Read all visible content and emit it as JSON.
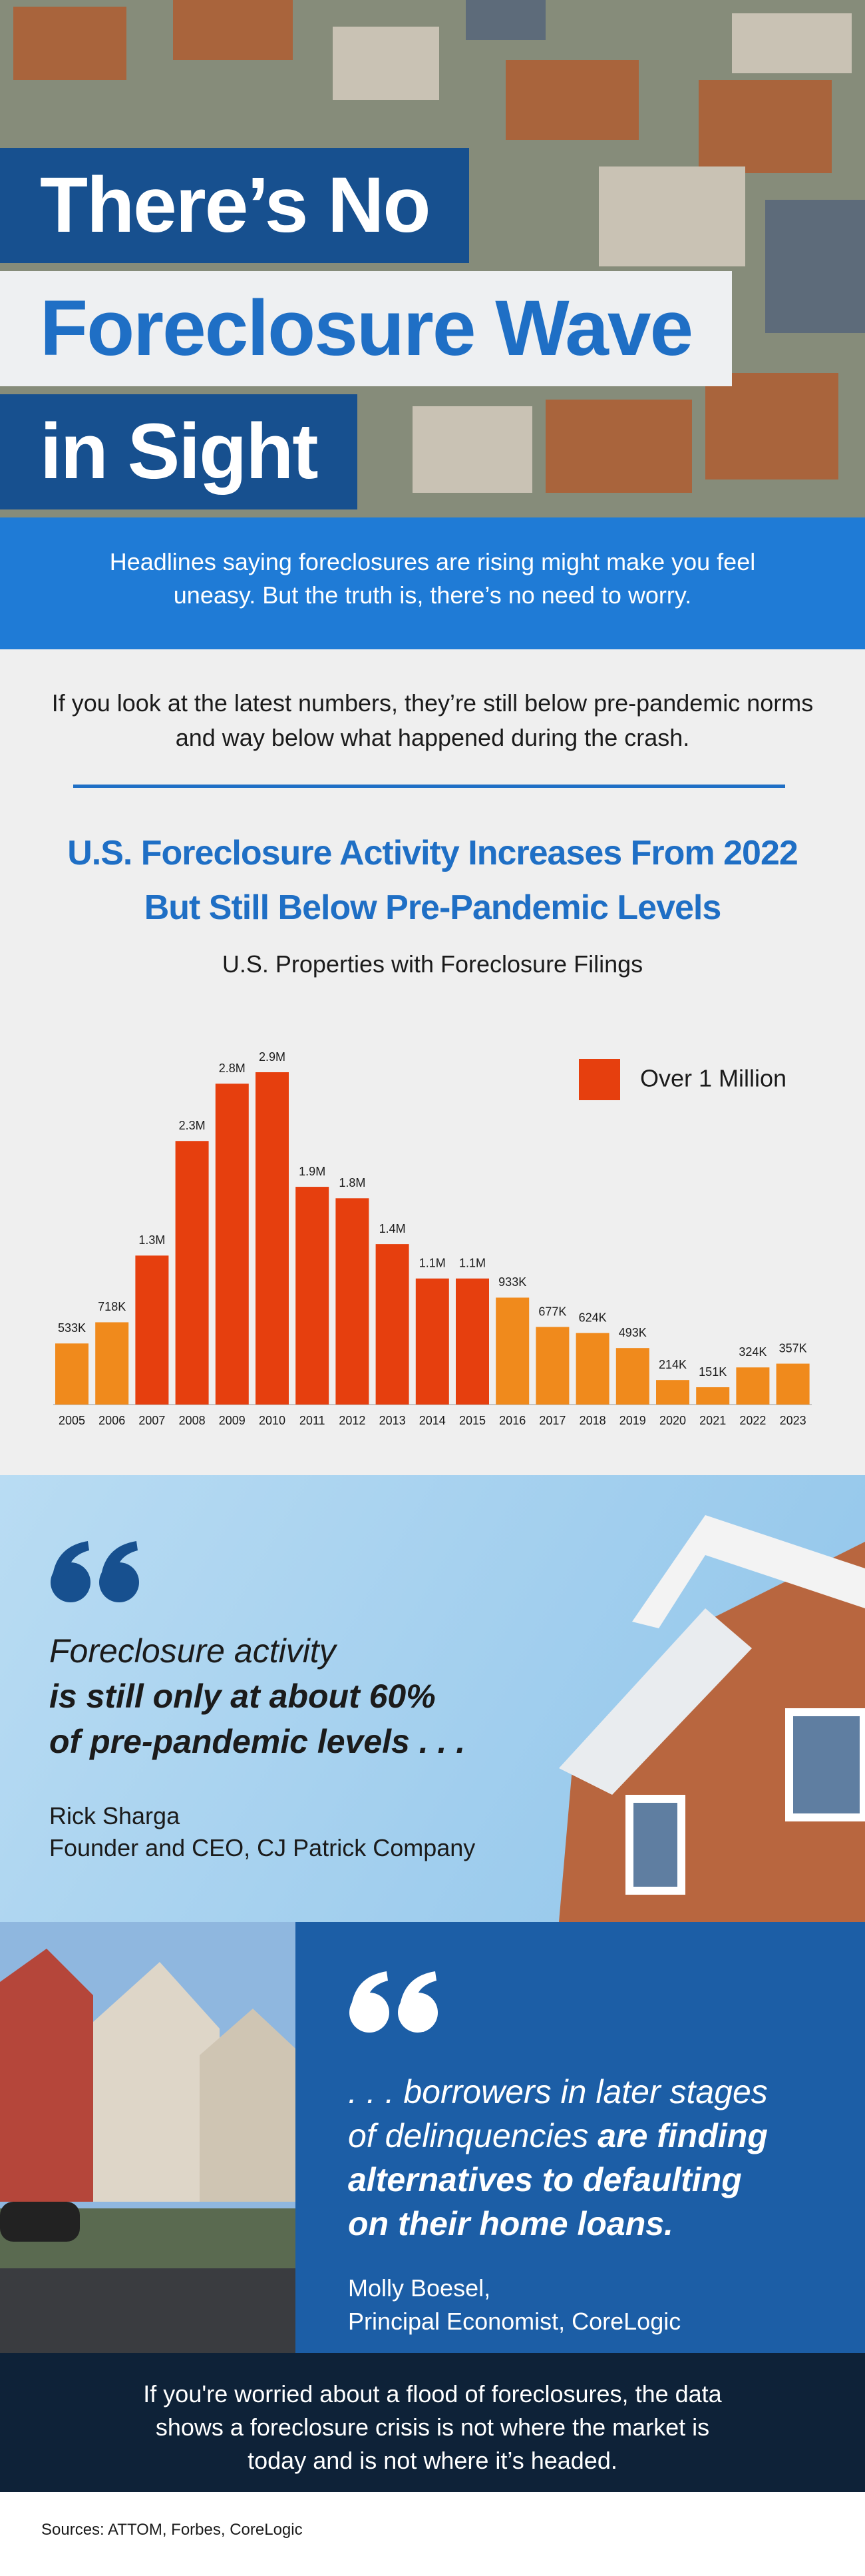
{
  "header": {
    "title_lines": [
      "There’s No",
      "Foreclosure Wave",
      "in Sight"
    ],
    "intro": "Headlines saying foreclosures are rising might make you feel uneasy. But the truth is, there’s no need to worry."
  },
  "lead": "If you look at the latest numbers, they’re still below pre-pandemic norms and way below what happened during the crash.",
  "chart_data": {
    "type": "bar",
    "title": "U.S. Foreclosure Activity Increases From 2022 But Still Below Pre-Pandemic Levels",
    "subtitle": "U.S. Properties with Foreclosure Filings",
    "categories": [
      "2005",
      "2006",
      "2007",
      "2008",
      "2009",
      "2010",
      "2011",
      "2012",
      "2013",
      "2014",
      "2015",
      "2016",
      "2017",
      "2018",
      "2019",
      "2020",
      "2021",
      "2022",
      "2023"
    ],
    "values": [
      533000,
      718000,
      1300000,
      2300000,
      2800000,
      2900000,
      1900000,
      1800000,
      1400000,
      1100000,
      1100000,
      933000,
      677000,
      624000,
      493000,
      214000,
      151000,
      324000,
      357000
    ],
    "value_labels": [
      "533K",
      "718K",
      "1.3M",
      "2.3M",
      "2.8M",
      "2.9M",
      "1.9M",
      "1.8M",
      "1.4M",
      "1.1M",
      "1.1M",
      "933K",
      "677K",
      "624K",
      "493K",
      "214K",
      "151K",
      "324K",
      "357K"
    ],
    "colors": [
      "#f08a1c",
      "#f08a1c",
      "#e63f0e",
      "#e63f0e",
      "#e63f0e",
      "#e63f0e",
      "#e63f0e",
      "#e63f0e",
      "#e63f0e",
      "#e63f0e",
      "#e63f0e",
      "#f08a1c",
      "#f08a1c",
      "#f08a1c",
      "#f08a1c",
      "#f08a1c",
      "#f08a1c",
      "#f08a1c",
      "#f08a1c"
    ],
    "legend": {
      "label": "Over 1 Million",
      "color": "#e63f0e"
    }
  },
  "quote1": {
    "lines": [
      "Foreclosure activity",
      "is still only at about 60%",
      "of pre-pandemic levels . . ."
    ],
    "name": "Rick Sharga",
    "role": "Founder and CEO, CJ Patrick Company"
  },
  "quote2": {
    "segments": [
      ". . . borrowers in later stages",
      "of delinquencies",
      "are finding",
      "alternatives to defaulting",
      "on their home loans."
    ],
    "name": "Molly Boesel,",
    "role": "Principal Economist, CoreLogic"
  },
  "closing": "If you're worried about a flood of foreclosures, the data shows a foreclosure crisis is not where the market is today and is not where it’s headed.",
  "sources": "Sources: ATTOM, Forbes, CoreLogic"
}
